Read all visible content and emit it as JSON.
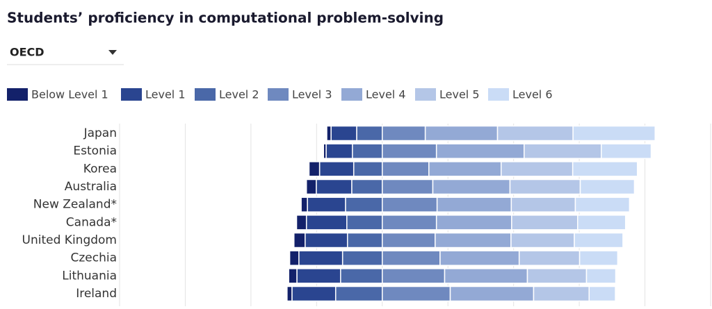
{
  "chart_data": {
    "type": "bar",
    "orientation": "horizontal",
    "diverging": true,
    "left_series": 3,
    "title": "Students’ proficiency in computational problem-solving",
    "categories": [
      "Japan",
      "Estonia",
      "Korea",
      "Australia",
      "New Zealand*",
      "Canada*",
      "United Kingdom",
      "Czechia",
      "Lithuania",
      "Ireland"
    ],
    "series": [
      {
        "name": "Below Level 1",
        "color": "#13216a",
        "values": [
          1.3,
          0.8,
          3.2,
          3.0,
          1.9,
          3.0,
          3.4,
          2.8,
          2.5,
          1.5
        ]
      },
      {
        "name": "Level 1",
        "color": "#2a4590",
        "values": [
          7.8,
          8.0,
          10.4,
          10.8,
          11.6,
          12.3,
          12.9,
          13.3,
          13.3,
          13.3
        ]
      },
      {
        "name": "Level 2",
        "color": "#4a68a8",
        "values": [
          7.8,
          9.1,
          8.7,
          9.3,
          11.2,
          10.8,
          10.6,
          12.1,
          12.7,
          14.2
        ]
      },
      {
        "name": "Level 3",
        "color": "#6f89bf",
        "values": [
          13.1,
          16.5,
          14.2,
          15.4,
          16.7,
          16.5,
          16.1,
          17.6,
          19.0,
          20.7
        ]
      },
      {
        "name": "Level 4",
        "color": "#93a9d5",
        "values": [
          22.0,
          26.7,
          22.0,
          23.5,
          22.6,
          22.9,
          23.1,
          24.1,
          25.2,
          25.4
        ]
      },
      {
        "name": "Level 5",
        "color": "#b4c6e7",
        "values": [
          23.0,
          23.5,
          21.8,
          21.4,
          19.5,
          20.1,
          19.3,
          18.4,
          18.0,
          16.9
        ]
      },
      {
        "name": "Level 6",
        "color": "#cadcf6",
        "values": [
          25.0,
          15.2,
          19.7,
          16.5,
          16.5,
          14.6,
          14.8,
          11.6,
          8.9,
          8.0
        ]
      }
    ],
    "xlim": [
      -80,
      100
    ],
    "xticks": [
      -80,
      -60,
      -40,
      -20,
      0,
      20,
      40,
      60,
      80,
      100
    ],
    "grid": true
  },
  "dropdown": {
    "label": "OECD"
  }
}
